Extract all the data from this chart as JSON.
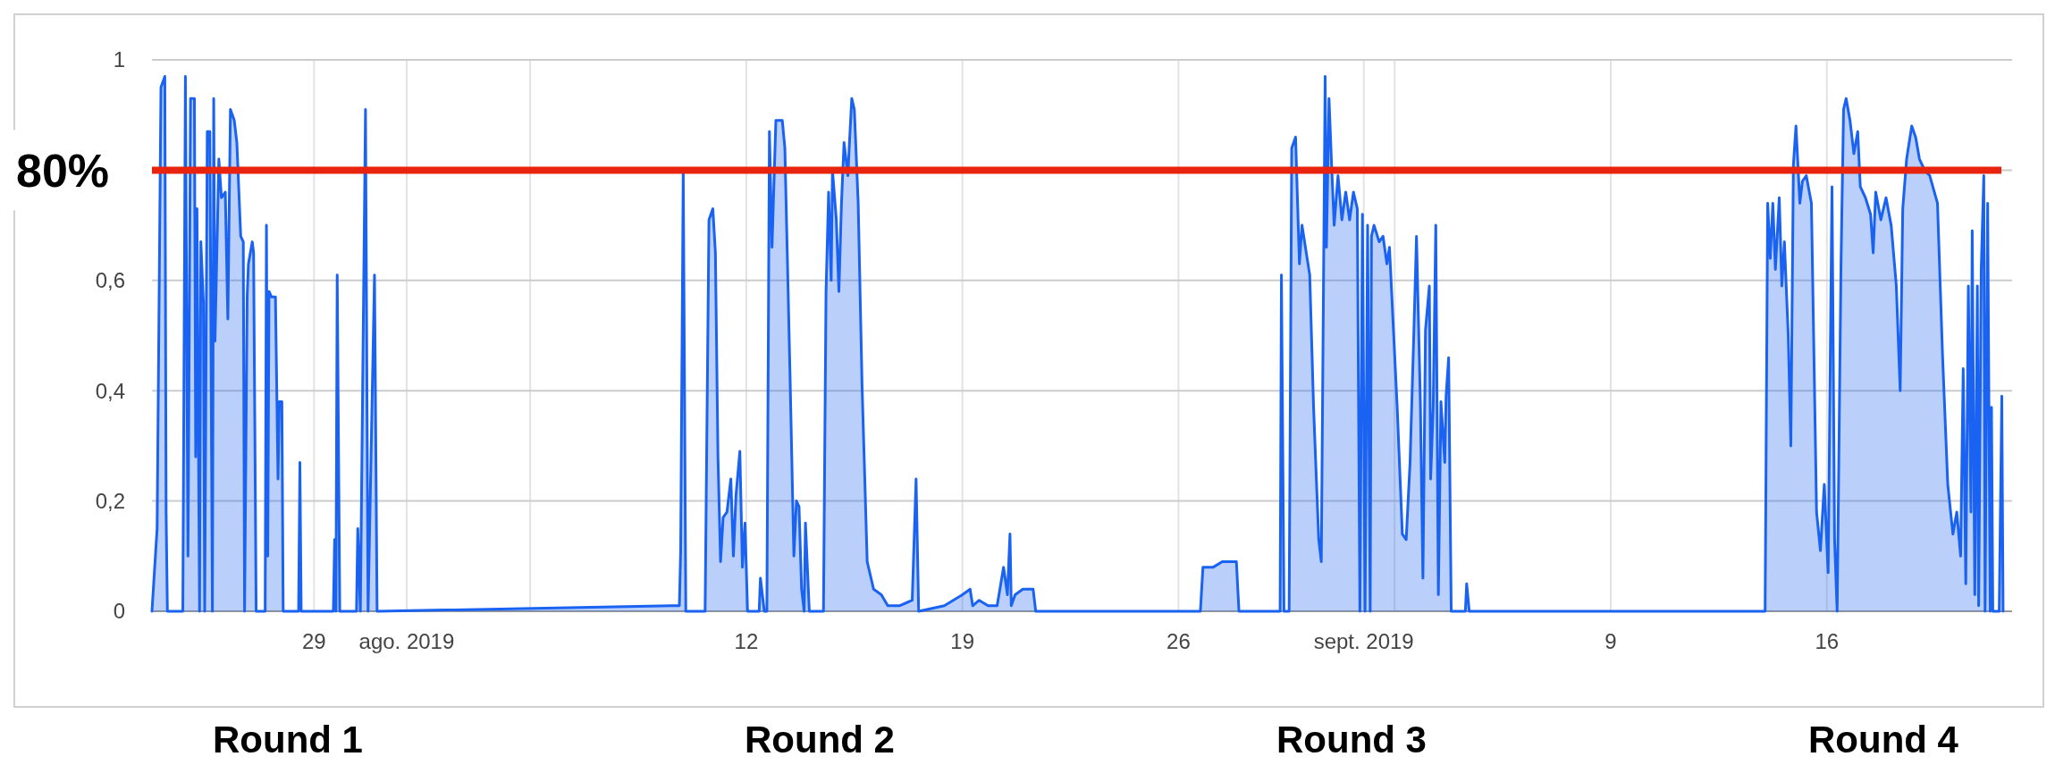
{
  "chart_data": {
    "type": "area",
    "xlim": [
      "2019-07-23T18:00",
      "2019-09-22"
    ],
    "xticks": [
      {
        "value": "2019-07-29",
        "label": "29"
      },
      {
        "value": "2019-08-01",
        "label": "ago. 2019"
      },
      {
        "value": "2019-08-05",
        "label": null
      },
      {
        "value": "2019-08-12",
        "label": "12"
      },
      {
        "value": "2019-08-19",
        "label": "19"
      },
      {
        "value": "2019-08-26",
        "label": "26"
      },
      {
        "value": "2019-09-01",
        "label": "sept. 2019"
      },
      {
        "value": "2019-09-02",
        "label": null
      },
      {
        "value": "2019-09-09",
        "label": "9"
      },
      {
        "value": "2019-09-16",
        "label": "16"
      }
    ],
    "ylim": [
      0,
      1
    ],
    "yticks": [
      0,
      {
        "value": 0.2,
        "label": "0,2"
      },
      {
        "value": 0.4,
        "label": "0,4"
      },
      {
        "value": 0.6,
        "label": "0,6"
      },
      {
        "value": 0.8,
        "label": null
      },
      1
    ],
    "grid": true,
    "ref_lines": [
      {
        "axis": "y",
        "value": 0.8,
        "label": "80%",
        "color": "#e8240f"
      }
    ],
    "annotations": [
      "Round 1",
      "Round 2",
      "Round 3",
      "Round 4"
    ],
    "series": [
      {
        "color": "#1a62f2",
        "x": [
          "2019-07-23T18:00",
          "2019-07-23T22:00",
          "2019-07-24T01:00",
          "2019-07-24T04:00",
          "2019-07-24T05:00",
          "2019-07-24T06:00",
          "2019-07-24T18:00",
          "2019-07-24T20:00",
          "2019-07-24T22:00",
          "2019-07-25T00:00",
          "2019-07-25T03:00",
          "2019-07-25T04:00",
          "2019-07-25T05:00",
          "2019-07-25T07:00",
          "2019-07-25T08:00",
          "2019-07-25T10:00",
          "2019-07-25T11:00",
          "2019-07-25T13:00",
          "2019-07-25T15:00",
          "2019-07-25T17:00",
          "2019-07-25T18:00",
          "2019-07-25T19:00",
          "2019-07-25T22:00",
          "2019-07-26T00:00",
          "2019-07-26T03:00",
          "2019-07-26T05:00",
          "2019-07-26T07:00",
          "2019-07-26T10:00",
          "2019-07-26T12:00",
          "2019-07-26T15:00",
          "2019-07-26T17:00",
          "2019-07-26T18:00",
          "2019-07-26T20:00",
          "2019-07-26T21:00",
          "2019-07-27T00:00",
          "2019-07-27T01:00",
          "2019-07-27T03:00",
          "2019-07-27T10:00",
          "2019-07-27T11:00",
          "2019-07-27T12:00",
          "2019-07-27T13:00",
          "2019-07-27T15:00",
          "2019-07-27T18:00",
          "2019-07-27T20:00",
          "2019-07-27T21:00",
          "2019-07-27T23:00",
          "2019-07-28T00:00",
          "2019-07-28T12:00",
          "2019-07-28T13:00",
          "2019-07-28T14:00",
          "2019-07-29T15:00",
          "2019-07-29T16:00",
          "2019-07-29T17:00",
          "2019-07-29T18:00",
          "2019-07-29T20:00",
          "2019-07-30T09:00",
          "2019-07-30T10:00",
          "2019-07-30T12:00",
          "2019-07-30T16:00",
          "2019-07-30T18:00",
          "2019-07-30T23:00",
          "2019-07-31T01:00",
          "2019-08-09T14:00",
          "2019-08-09T20:00",
          "2019-08-09T21:00",
          "2019-08-09T23:00",
          "2019-08-10T01:00",
          "2019-08-10T16:00",
          "2019-08-10T19:00",
          "2019-08-10T22:00",
          "2019-08-11T00:00",
          "2019-08-11T02:00",
          "2019-08-11T04:00",
          "2019-08-11T06:00",
          "2019-08-11T09:00",
          "2019-08-11T12:00",
          "2019-08-11T14:00",
          "2019-08-11T16:00",
          "2019-08-11T19:00",
          "2019-08-11T21:00",
          "2019-08-11T23:00",
          "2019-08-12T01:00",
          "2019-08-12T10:00",
          "2019-08-12T11:00",
          "2019-08-12T14:00",
          "2019-08-12T16:00",
          "2019-08-12T18:00",
          "2019-08-12T20:00",
          "2019-08-12T23:00",
          "2019-08-13T04:00",
          "2019-08-13T06:00",
          "2019-08-13T10:00",
          "2019-08-13T13:00",
          "2019-08-13T15:00",
          "2019-08-13T17:00",
          "2019-08-13T19:00",
          "2019-08-13T21:00",
          "2019-08-13T22:00",
          "2019-08-14T01:00",
          "2019-08-14T12:00",
          "2019-08-14T14:00",
          "2019-08-14T16:00",
          "2019-08-14T18:00",
          "2019-08-14T19:00",
          "2019-08-14T22:00",
          "2019-08-15T00:00",
          "2019-08-15T02:00",
          "2019-08-15T04:00",
          "2019-08-15T07:00",
          "2019-08-15T08:00",
          "2019-08-15T10:00",
          "2019-08-15T12:00",
          "2019-08-15T15:00",
          "2019-08-15T18:00",
          "2019-08-15T22:00",
          "2019-08-16T03:00",
          "2019-08-16T09:00",
          "2019-08-16T14:00",
          "2019-08-16T23:00",
          "2019-08-17T09:00",
          "2019-08-17T12:00",
          "2019-08-17T14:00",
          "2019-08-18T10:00",
          "2019-08-19T00:00",
          "2019-08-19T06:00",
          "2019-08-19T08:00",
          "2019-08-19T13:00",
          "2019-08-19T20:00",
          "2019-08-20T03:00",
          "2019-08-20T08:00",
          "2019-08-20T11:00",
          "2019-08-20T13:00",
          "2019-08-20T14:00",
          "2019-08-20T17:00",
          "2019-08-20T23:00",
          "2019-08-21T07:00",
          "2019-08-21T09:00",
          "2019-08-26T17:00",
          "2019-08-26T19:00",
          "2019-08-27T03:00",
          "2019-08-27T10:00",
          "2019-08-27T21:00",
          "2019-08-27T23:00",
          "2019-08-29T07:00",
          "2019-08-29T08:00",
          "2019-08-29T10:00",
          "2019-08-29T14:00",
          "2019-08-29T16:00",
          "2019-08-29T19:00",
          "2019-08-29T22:00",
          "2019-08-30T00:00",
          "2019-08-30T06:00",
          "2019-08-30T09:00",
          "2019-08-30T13:00",
          "2019-08-30T15:00",
          "2019-08-30T18:00",
          "2019-08-30T19:00",
          "2019-08-30T21:00",
          "2019-08-30T23:00",
          "2019-08-31T01:00",
          "2019-08-31T04:00",
          "2019-08-31T07:00",
          "2019-08-31T10:00",
          "2019-08-31T13:00",
          "2019-08-31T16:00",
          "2019-08-31T19:00",
          "2019-08-31T21:00",
          "2019-08-31T23:00",
          "2019-09-01T01:00",
          "2019-09-01T03:00",
          "2019-09-01T05:00",
          "2019-09-01T06:00",
          "2019-09-01T08:00",
          "2019-09-01T12:00",
          "2019-09-01T15:00",
          "2019-09-01T18:00",
          "2019-09-01T20:00",
          "2019-09-02T02:00",
          "2019-09-02T06:00",
          "2019-09-02T09:00",
          "2019-09-02T12:00",
          "2019-09-02T15:00",
          "2019-09-02T17:00",
          "2019-09-02T20:00",
          "2019-09-02T22:00",
          "2019-09-03T00:00",
          "2019-09-03T03:00",
          "2019-09-03T04:00",
          "2019-09-03T06:00",
          "2019-09-03T08:00",
          "2019-09-03T10:00",
          "2019-09-03T12:00",
          "2019-09-03T15:00",
          "2019-09-03T16:00",
          "2019-09-03T18:00",
          "2019-09-03T20:00",
          "2019-09-04T07:00",
          "2019-09-04T08:00",
          "2019-09-04T10:00",
          "2019-09-14T00:00",
          "2019-09-14T02:00",
          "2019-09-14T04:00",
          "2019-09-14T06:00",
          "2019-09-14T08:00",
          "2019-09-14T11:00",
          "2019-09-14T13:00",
          "2019-09-14T15:00",
          "2019-09-14T18:00",
          "2019-09-14T20:00",
          "2019-09-14T22:00",
          "2019-09-15T00:00",
          "2019-09-15T03:00",
          "2019-09-15T05:00",
          "2019-09-15T08:00",
          "2019-09-15T12:00",
          "2019-09-15T16:00",
          "2019-09-15T19:00",
          "2019-09-15T22:00",
          "2019-09-16T01:00",
          "2019-09-16T04:00",
          "2019-09-16T06:00",
          "2019-09-16T08:00",
          "2019-09-16T11:00",
          "2019-09-16T13:00",
          "2019-09-16T15:00",
          "2019-09-16T18:00",
          "2019-09-16T21:00",
          "2019-09-17T00:00",
          "2019-09-17T02:00",
          "2019-09-17T06:00",
          "2019-09-17T10:00",
          "2019-09-17T12:00",
          "2019-09-17T14:00",
          "2019-09-17T18:00",
          "2019-09-17T22:00",
          "2019-09-18T02:00",
          "2019-09-18T06:00",
          "2019-09-18T09:00",
          "2019-09-18T11:00",
          "2019-09-18T14:00",
          "2019-09-18T18:00",
          "2019-09-18T21:00",
          "2019-09-19T00:00",
          "2019-09-19T04:00",
          "2019-09-19T08:00",
          "2019-09-19T14:00",
          "2019-09-19T18:00",
          "2019-09-19T22:00",
          "2019-09-20T02:00",
          "2019-09-20T05:00",
          "2019-09-20T08:00",
          "2019-09-20T10:00",
          "2019-09-20T12:00",
          "2019-09-20T14:00",
          "2019-09-20T16:00",
          "2019-09-20T17:00",
          "2019-09-20T19:00",
          "2019-09-20T21:00",
          "2019-09-20T22:00",
          "2019-09-21T00:00",
          "2019-09-21T02:00",
          "2019-09-21T03:00",
          "2019-09-21T05:00",
          "2019-09-21T07:00",
          "2019-09-21T08:00",
          "2019-09-21T09:00",
          "2019-09-21T14:00",
          "2019-09-21T16:00",
          "2019-09-21T17:00"
        ],
        "values": [
          0,
          0.15,
          0.95,
          0.97,
          0.18,
          0,
          0,
          0.97,
          0.1,
          0.93,
          0.93,
          0.28,
          0.73,
          0,
          0.67,
          0.56,
          0,
          0.87,
          0.87,
          0,
          0.93,
          0.49,
          0.82,
          0.75,
          0.76,
          0.53,
          0.91,
          0.89,
          0.85,
          0.68,
          0.67,
          0,
          0.57,
          0.63,
          0.67,
          0.65,
          0,
          0,
          0.7,
          0.1,
          0.58,
          0.57,
          0.57,
          0.24,
          0.38,
          0.38,
          0,
          0,
          0.27,
          0,
          0,
          0.13,
          0,
          0.61,
          0,
          0,
          0.15,
          0,
          0.91,
          0,
          0.61,
          0,
          0.01,
          0.01,
          0.11,
          0.8,
          0,
          0,
          0.71,
          0.73,
          0.65,
          0.28,
          0.09,
          0.17,
          0.18,
          0.24,
          0.1,
          0.21,
          0.29,
          0.08,
          0.16,
          0,
          0,
          0.06,
          0,
          0,
          0.87,
          0.66,
          0.89,
          0.89,
          0.84,
          0.43,
          0.1,
          0.2,
          0.19,
          0.04,
          0,
          0.16,
          0,
          0,
          0.58,
          0.76,
          0.6,
          0.8,
          0.71,
          0.58,
          0.74,
          0.85,
          0.79,
          0.84,
          0.93,
          0.91,
          0.74,
          0.41,
          0.09,
          0.04,
          0.03,
          0.01,
          0.01,
          0.02,
          0.24,
          0,
          0.01,
          0.03,
          0.04,
          0.01,
          0.02,
          0.01,
          0.01,
          0.08,
          0.03,
          0.14,
          0.01,
          0.03,
          0.04,
          0.04,
          0,
          0,
          0.08,
          0.08,
          0.09,
          0.09,
          0,
          0,
          0.61,
          0,
          0,
          0.84,
          0.86,
          0.63,
          0.7,
          0.61,
          0.37,
          0.13,
          0.09,
          0.97,
          0.66,
          0.93,
          0.81,
          0.7,
          0.79,
          0.71,
          0.76,
          0.71,
          0.76,
          0.73,
          0,
          0.72,
          0,
          0.7,
          0,
          0.68,
          0.7,
          0.67,
          0.68,
          0.63,
          0.66,
          0.37,
          0.14,
          0.13,
          0.27,
          0.51,
          0.68,
          0.38,
          0.06,
          0.51,
          0.59,
          0.24,
          0.37,
          0.7,
          0.03,
          0.38,
          0.27,
          0.39,
          0.46,
          0,
          0,
          0.05,
          0,
          0,
          0.74,
          0.64,
          0.74,
          0.62,
          0.75,
          0.59,
          0.67,
          0.5,
          0.3,
          0.81,
          0.88,
          0.74,
          0.78,
          0.79,
          0.74,
          0.18,
          0.11,
          0.23,
          0.07,
          0.77,
          0.13,
          0,
          0.63,
          0.91,
          0.93,
          0.89,
          0.83,
          0.87,
          0.77,
          0.75,
          0.72,
          0.65,
          0.76,
          0.71,
          0.75,
          0.7,
          0.59,
          0.4,
          0.73,
          0.82,
          0.88,
          0.86,
          0.82,
          0.8,
          0.79,
          0.74,
          0.46,
          0.23,
          0.14,
          0.18,
          0.1,
          0.44,
          0.05,
          0.59,
          0.18,
          0.69,
          0.03,
          0.59,
          0.01,
          0.62,
          0.79,
          0,
          0.74,
          0,
          0.37,
          0,
          0,
          0.39,
          0
        ]
      }
    ]
  }
}
